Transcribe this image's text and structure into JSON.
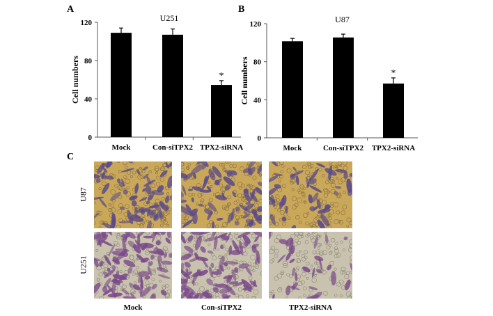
{
  "panels": {
    "a": "A",
    "b": "B",
    "c": "C"
  },
  "chart_data": [
    {
      "type": "bar",
      "title": "U251",
      "xlabel": "",
      "ylabel": "Cell numbers",
      "categories": [
        "Mock",
        "Con-siTPX2",
        "TPX2-siRNA"
      ],
      "values": [
        109,
        107,
        54.5
      ],
      "error_upper": [
        114,
        113,
        59
      ],
      "annotations": [
        "",
        "",
        "*"
      ],
      "ylim": [
        0,
        120
      ],
      "yticks": [
        0,
        40,
        80,
        120
      ],
      "color": "#000000"
    },
    {
      "type": "bar",
      "title": "U87",
      "xlabel": "",
      "ylabel": "Cell numbers",
      "categories": [
        "Mock",
        "Con-siTPX2",
        "TPX2-siRNA"
      ],
      "values": [
        101.5,
        105.5,
        57
      ],
      "error_upper": [
        104.5,
        109,
        63
      ],
      "annotations": [
        "",
        "",
        "*"
      ],
      "ylim": [
        0,
        120
      ],
      "yticks": [
        0,
        40,
        80,
        120
      ],
      "color": "#000000"
    }
  ],
  "micrographs": {
    "rows": [
      "U87",
      "U251"
    ],
    "columns": [
      "Mock",
      "Con-siTPX2",
      "TPX2-siRNA"
    ]
  }
}
